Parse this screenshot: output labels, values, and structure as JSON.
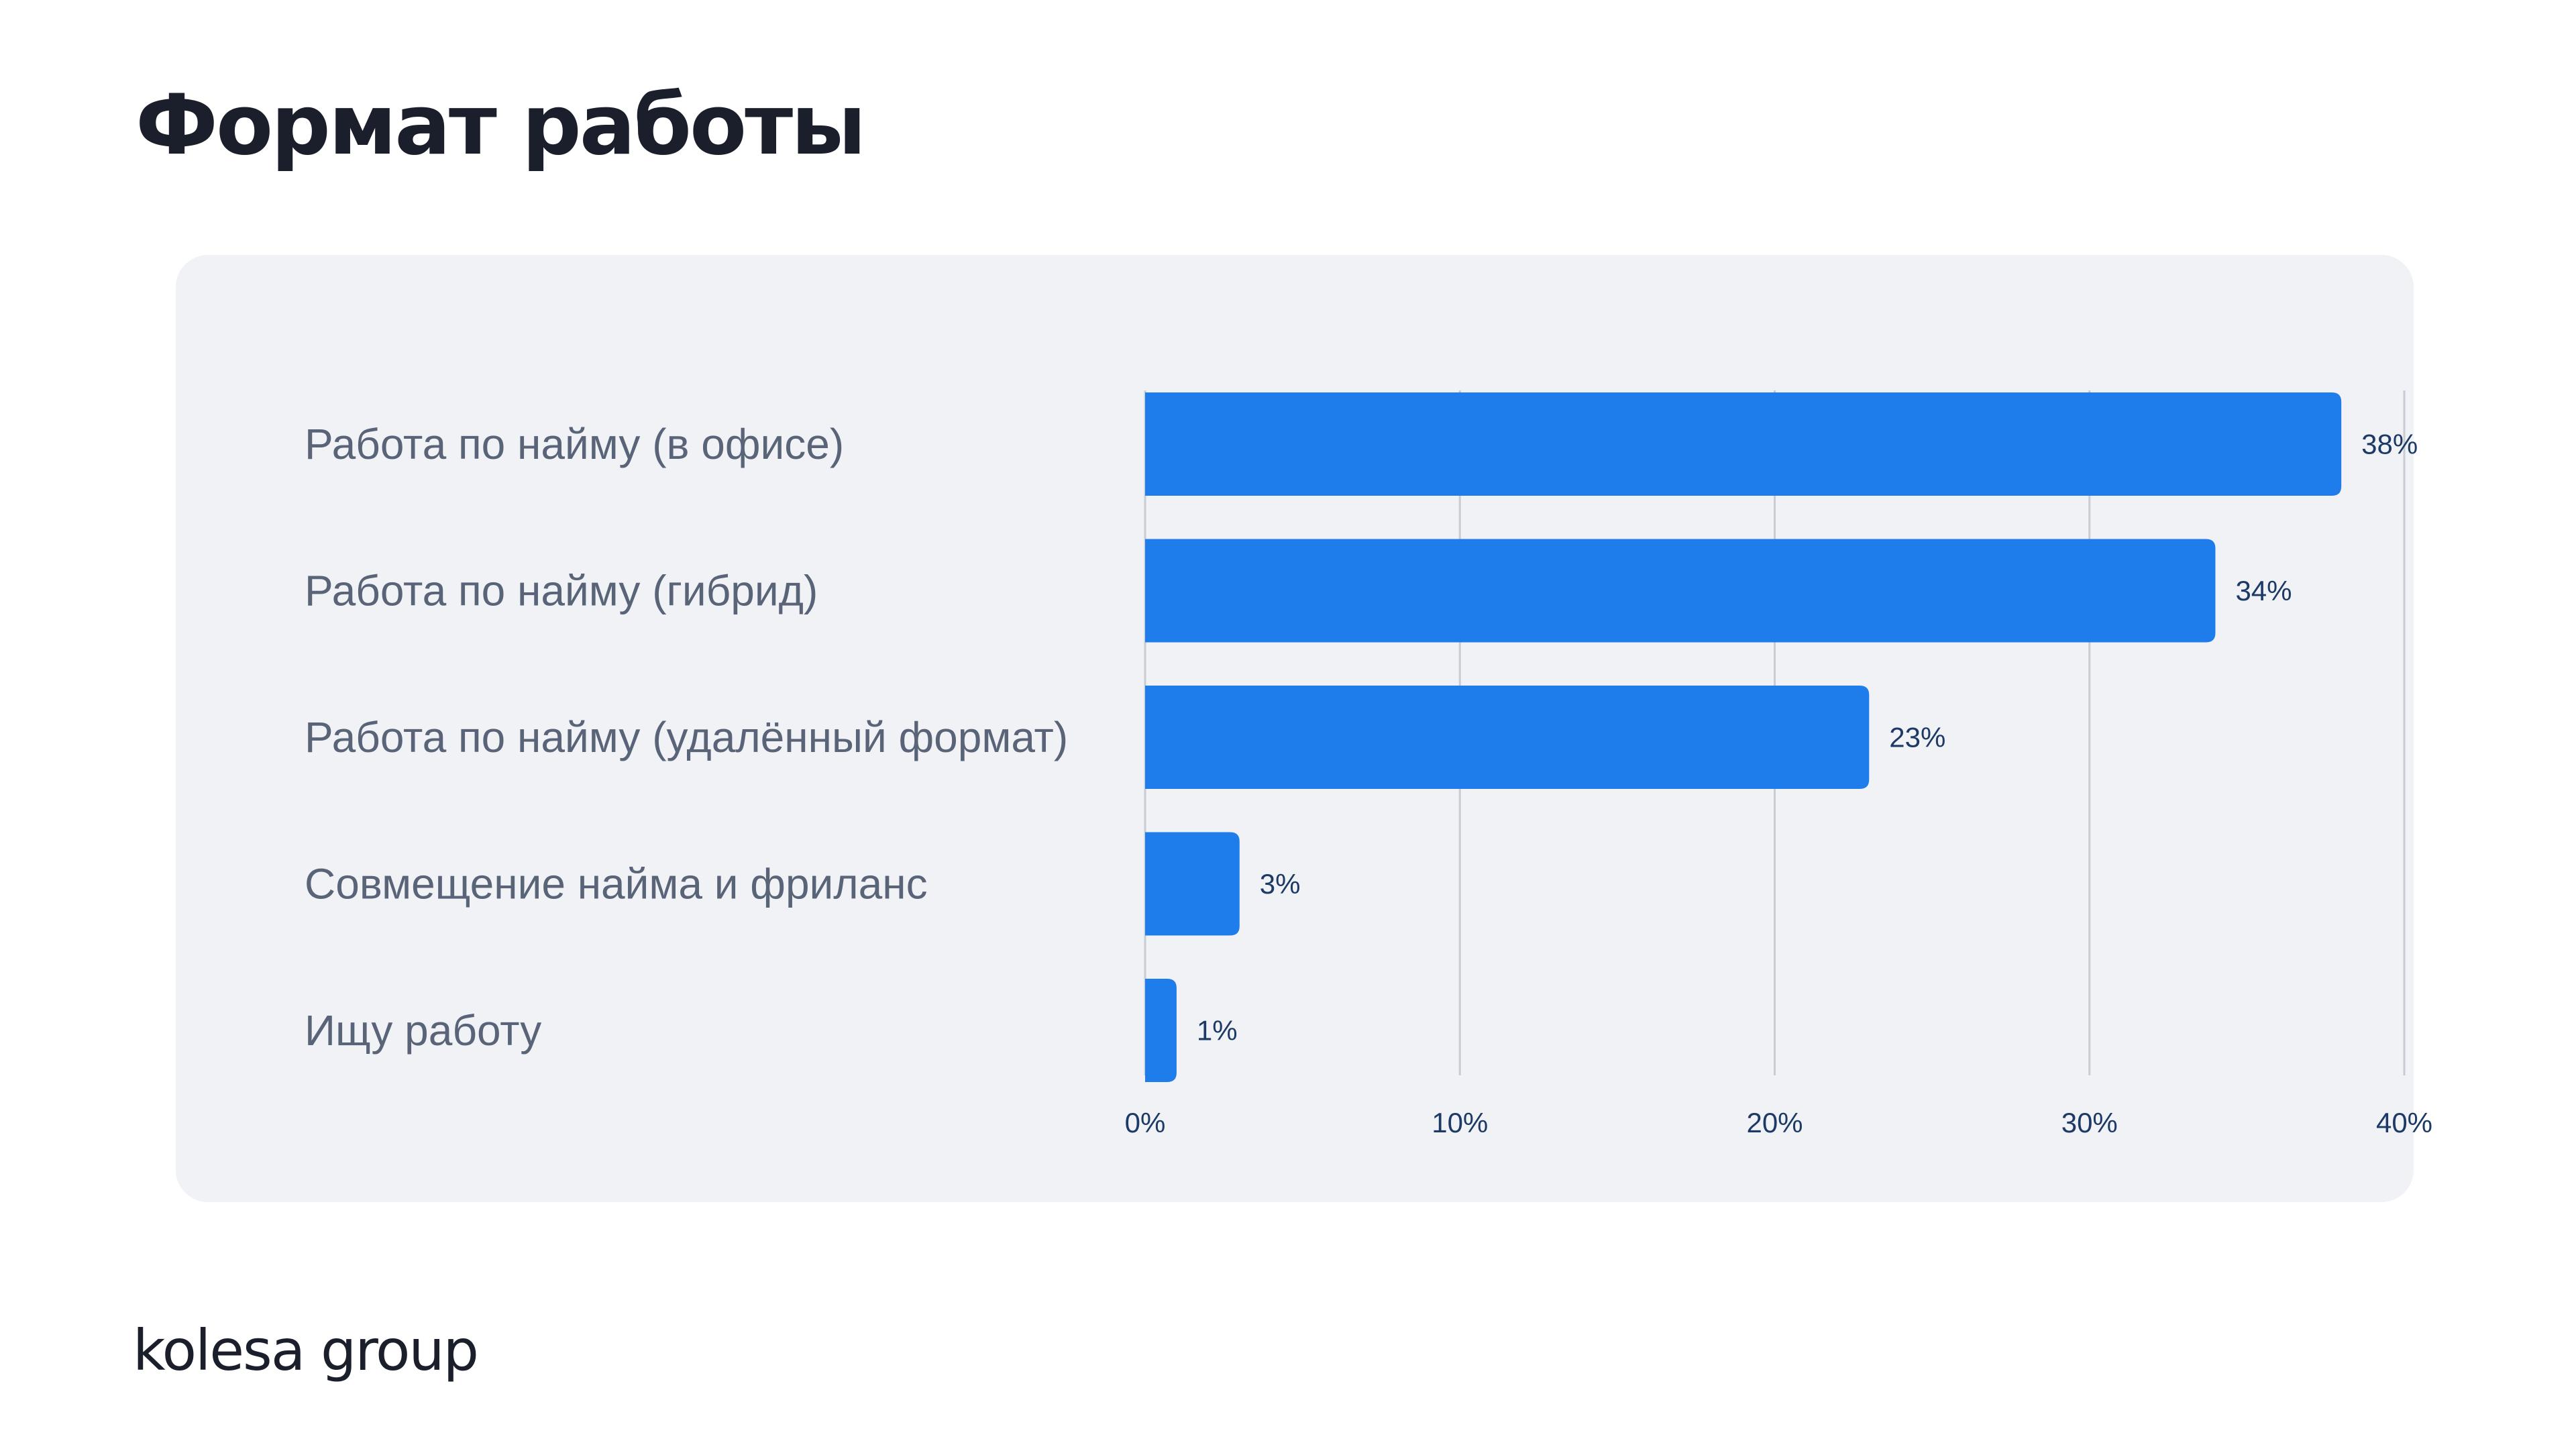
{
  "page": {
    "title": "Формат работы",
    "brand": "kolesa group"
  },
  "colors": {
    "bar": "#1e7ceb",
    "category_label": "#5a6478",
    "value_label": "#1d3a66",
    "tick_label": "#1d3a66",
    "grid": "#c8ccd4",
    "panel": "#f0f2f5",
    "title": "#1a1f2b"
  },
  "chart_data": {
    "type": "bar",
    "orientation": "horizontal",
    "title": "",
    "xlabel": "",
    "ylabel": "",
    "categories": [
      "Работа по найму (в офисе)",
      "Работа по найму (гибрид)",
      "Работа по найму (удалённый формат)",
      "Совмещение найма и фриланс",
      "Ищу работу"
    ],
    "values": [
      38,
      34,
      23,
      3,
      1
    ],
    "value_labels": [
      "38%",
      "34%",
      "23%",
      "3%",
      "1%"
    ],
    "xlim": [
      0,
      40
    ],
    "xticks": [
      0,
      10,
      20,
      30,
      40
    ],
    "xtick_labels": [
      "0%",
      "10%",
      "20%",
      "30%",
      "40%"
    ],
    "grid": "vertical",
    "legend": "none"
  }
}
